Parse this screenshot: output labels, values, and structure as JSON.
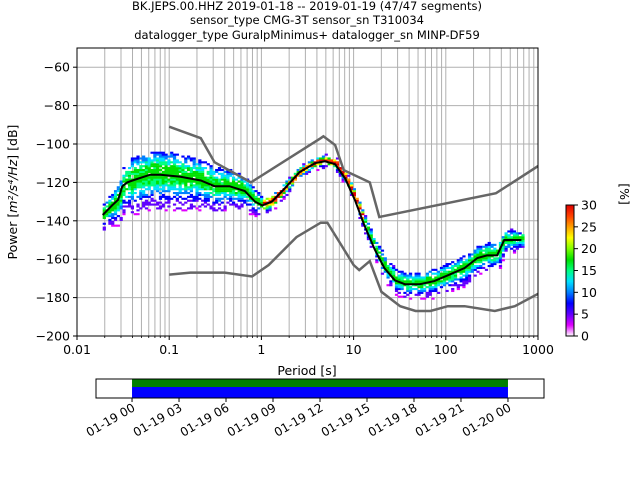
{
  "chart_data": {
    "type": "heatmap",
    "title_lines": [
      "BK.JEPS.00.HHZ   2019-01-18 -- 2019-01-19  (47/47 segments)",
      "sensor_type CMG-3T sensor_sn T310034",
      "datalogger_type GuralpMinimus+ datalogger_sn MINP-DF59"
    ],
    "xlabel": "Period [s]",
    "ylabel_prefix": "Power [",
    "ylabel_math": "m²/s⁴/Hz",
    "ylabel_suffix": "] [dB]",
    "xscale": "log",
    "xlim": [
      0.01,
      1000
    ],
    "ylim": [
      -200,
      -50
    ],
    "grid": true,
    "x_ticks": [
      {
        "value": 0.01,
        "label": "0.01"
      },
      {
        "value": 0.1,
        "label": "0.1"
      },
      {
        "value": 1,
        "label": "1"
      },
      {
        "value": 10,
        "label": "10"
      },
      {
        "value": 100,
        "label": "100"
      },
      {
        "value": 1000,
        "label": "1000"
      }
    ],
    "y_ticks": [
      {
        "value": -60,
        "label": "−60"
      },
      {
        "value": -80,
        "label": "−80"
      },
      {
        "value": -100,
        "label": "−100"
      },
      {
        "value": -120,
        "label": "−120"
      },
      {
        "value": -140,
        "label": "−140"
      },
      {
        "value": -160,
        "label": "−160"
      },
      {
        "value": -180,
        "label": "−180"
      },
      {
        "value": -200,
        "label": "−200"
      }
    ],
    "noise_models": {
      "color": "#666666",
      "NHNM": [
        [
          0.1,
          -91
        ],
        [
          0.22,
          -97
        ],
        [
          0.31,
          -109.5
        ],
        [
          0.77,
          -120
        ],
        [
          4.4,
          -97
        ],
        [
          4.7,
          -96
        ],
        [
          6.3,
          -100.5
        ],
        [
          7.8,
          -113.6
        ],
        [
          15,
          -120
        ],
        [
          19,
          -138
        ],
        [
          350,
          -125.6
        ],
        [
          1000,
          -111.5
        ]
      ],
      "NLNM": [
        [
          0.1,
          -168
        ],
        [
          0.17,
          -167
        ],
        [
          0.4,
          -167
        ],
        [
          0.79,
          -169
        ],
        [
          1.2,
          -163
        ],
        [
          2.4,
          -148.5
        ],
        [
          4.4,
          -141
        ],
        [
          5.2,
          -141
        ],
        [
          7,
          -151
        ],
        [
          10,
          -163
        ],
        [
          11.5,
          -165.7
        ],
        [
          15,
          -161
        ],
        [
          20,
          -177
        ],
        [
          32,
          -184.5
        ],
        [
          47,
          -187
        ],
        [
          68,
          -187
        ],
        [
          105,
          -184.5
        ],
        [
          160,
          -184.5
        ],
        [
          340,
          -187
        ],
        [
          560,
          -184.5
        ],
        [
          1000,
          -178
        ]
      ]
    },
    "mode_curve": {
      "color": "#000000",
      "points": [
        [
          0.019,
          -137
        ],
        [
          0.024,
          -132
        ],
        [
          0.028,
          -129
        ],
        [
          0.031,
          -122
        ],
        [
          0.035,
          -120
        ],
        [
          0.04,
          -119
        ],
        [
          0.062,
          -116
        ],
        [
          0.08,
          -116
        ],
        [
          0.13,
          -117
        ],
        [
          0.22,
          -119
        ],
        [
          0.31,
          -122
        ],
        [
          0.45,
          -122
        ],
        [
          0.66,
          -124.5
        ],
        [
          0.85,
          -130
        ],
        [
          1.02,
          -132
        ],
        [
          1.3,
          -130
        ],
        [
          1.8,
          -123
        ],
        [
          2.6,
          -114.6
        ],
        [
          3.8,
          -110
        ],
        [
          4.9,
          -109
        ],
        [
          6.3,
          -110.5
        ],
        [
          8.1,
          -118
        ],
        [
          10.3,
          -129
        ],
        [
          13,
          -142
        ],
        [
          17,
          -155
        ],
        [
          21.5,
          -164.6
        ],
        [
          28,
          -171
        ],
        [
          36,
          -173
        ],
        [
          52,
          -173
        ],
        [
          75,
          -171.4
        ],
        [
          110,
          -168
        ],
        [
          160,
          -164.6
        ],
        [
          220,
          -159.4
        ],
        [
          280,
          -158
        ],
        [
          360,
          -158
        ],
        [
          430,
          -150
        ],
        [
          660,
          -150
        ]
      ]
    },
    "density_spread_db": {
      "description": "approximate half-width of probability density band around mode, by period",
      "points": [
        [
          0.02,
          8
        ],
        [
          0.04,
          18
        ],
        [
          0.1,
          18
        ],
        [
          0.3,
          14
        ],
        [
          0.7,
          10
        ],
        [
          1,
          5
        ],
        [
          3,
          3
        ],
        [
          10,
          4
        ],
        [
          20,
          7
        ],
        [
          50,
          8
        ],
        [
          150,
          9
        ],
        [
          400,
          8
        ],
        [
          660,
          5
        ]
      ]
    },
    "colorbar": {
      "label": "[%]",
      "range": [
        0,
        30
      ],
      "ticks": [
        {
          "value": 0,
          "label": "0"
        },
        {
          "value": 5,
          "label": "5"
        },
        {
          "value": 10,
          "label": "10"
        },
        {
          "value": 15,
          "label": "15"
        },
        {
          "value": 20,
          "label": "20"
        },
        {
          "value": 25,
          "label": "25"
        },
        {
          "value": 30,
          "label": "30"
        }
      ],
      "colormap": [
        "#ffffff",
        "#e000ff",
        "#6000ff",
        "#0000ff",
        "#0080ff",
        "#00e0ff",
        "#00ff80",
        "#00e000",
        "#80ff00",
        "#ffff00",
        "#ffa000",
        "#ff4000",
        "#e00000"
      ]
    },
    "timeline": {
      "ticks": [
        "01-19 00",
        "01-19 03",
        "01-19 06",
        "01-19 09",
        "01-19 12",
        "01-19 15",
        "01-19 18",
        "01-19 21",
        "01-20 00"
      ],
      "range_hours": [
        -2.3,
        26.3
      ],
      "coverage_hours": [
        0,
        24
      ],
      "coverage_color_top": "#008000",
      "coverage_color_bottom": "#0000ff"
    }
  }
}
